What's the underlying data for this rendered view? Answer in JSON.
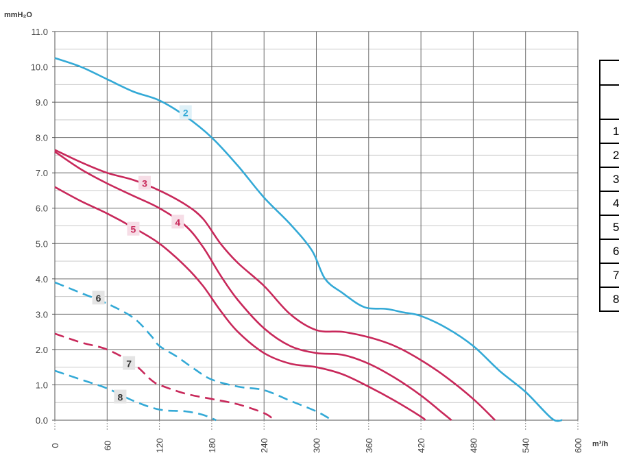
{
  "chart_data": {
    "type": "line",
    "title": "",
    "xlabel": "m³/h",
    "ylabel": "mmH₂O",
    "xlim": [
      0,
      600
    ],
    "ylim": [
      0,
      11
    ],
    "grid": true,
    "x_ticks": [
      0,
      60,
      120,
      180,
      240,
      300,
      360,
      420,
      480,
      540,
      600
    ],
    "y_ticks": [
      "0.0",
      "1.0",
      "2.0",
      "3.0",
      "4.0",
      "5.0",
      "6.0",
      "7.0",
      "8.0",
      "9.0",
      "10.0",
      "11.0"
    ],
    "series": [
      {
        "name": "2",
        "color": "#33a9d6",
        "dashed": false,
        "label_at": [
          150,
          8.7
        ],
        "points": [
          [
            0,
            10.25
          ],
          [
            30,
            10.0
          ],
          [
            60,
            9.65
          ],
          [
            90,
            9.3
          ],
          [
            120,
            9.05
          ],
          [
            150,
            8.6
          ],
          [
            180,
            8.0
          ],
          [
            210,
            7.2
          ],
          [
            240,
            6.3
          ],
          [
            270,
            5.55
          ],
          [
            295,
            4.8
          ],
          [
            310,
            4.0
          ],
          [
            330,
            3.6
          ],
          [
            355,
            3.2
          ],
          [
            380,
            3.15
          ],
          [
            400,
            3.05
          ],
          [
            420,
            2.95
          ],
          [
            450,
            2.6
          ],
          [
            480,
            2.1
          ],
          [
            510,
            1.4
          ],
          [
            540,
            0.8
          ],
          [
            570,
            0.05
          ],
          [
            582,
            0.0
          ]
        ]
      },
      {
        "name": "3",
        "color": "#c8285a",
        "dashed": false,
        "label_at": [
          103,
          6.7
        ],
        "points": [
          [
            0,
            7.65
          ],
          [
            30,
            7.3
          ],
          [
            60,
            7.0
          ],
          [
            90,
            6.8
          ],
          [
            120,
            6.5
          ],
          [
            150,
            6.1
          ],
          [
            170,
            5.7
          ],
          [
            190,
            5.0
          ],
          [
            210,
            4.45
          ],
          [
            240,
            3.8
          ],
          [
            270,
            3.0
          ],
          [
            300,
            2.55
          ],
          [
            330,
            2.5
          ],
          [
            360,
            2.35
          ],
          [
            390,
            2.1
          ],
          [
            420,
            1.7
          ],
          [
            450,
            1.2
          ],
          [
            480,
            0.6
          ],
          [
            505,
            0.0
          ]
        ]
      },
      {
        "name": "4",
        "color": "#c8285a",
        "dashed": false,
        "label_at": [
          141,
          5.6
        ],
        "points": [
          [
            0,
            7.6
          ],
          [
            30,
            7.1
          ],
          [
            60,
            6.7
          ],
          [
            90,
            6.35
          ],
          [
            120,
            6.0
          ],
          [
            150,
            5.5
          ],
          [
            170,
            4.9
          ],
          [
            190,
            4.1
          ],
          [
            210,
            3.4
          ],
          [
            240,
            2.6
          ],
          [
            270,
            2.1
          ],
          [
            300,
            1.9
          ],
          [
            330,
            1.85
          ],
          [
            360,
            1.6
          ],
          [
            390,
            1.2
          ],
          [
            420,
            0.7
          ],
          [
            445,
            0.2
          ],
          [
            455,
            0.0
          ]
        ]
      },
      {
        "name": "5",
        "color": "#c8285a",
        "dashed": false,
        "label_at": [
          90,
          5.4
        ],
        "points": [
          [
            0,
            6.6
          ],
          [
            30,
            6.2
          ],
          [
            60,
            5.85
          ],
          [
            90,
            5.45
          ],
          [
            120,
            5.0
          ],
          [
            150,
            4.35
          ],
          [
            170,
            3.8
          ],
          [
            190,
            3.1
          ],
          [
            210,
            2.5
          ],
          [
            240,
            1.9
          ],
          [
            270,
            1.6
          ],
          [
            300,
            1.5
          ],
          [
            330,
            1.3
          ],
          [
            360,
            0.95
          ],
          [
            390,
            0.55
          ],
          [
            420,
            0.1
          ],
          [
            425,
            0.0
          ]
        ]
      },
      {
        "name": "6",
        "color": "#33a9d6",
        "dashed": true,
        "label_at": [
          50,
          3.45
        ],
        "points": [
          [
            0,
            3.9
          ],
          [
            30,
            3.6
          ],
          [
            60,
            3.3
          ],
          [
            90,
            2.9
          ],
          [
            110,
            2.4
          ],
          [
            120,
            2.1
          ],
          [
            140,
            1.8
          ],
          [
            160,
            1.45
          ],
          [
            180,
            1.15
          ],
          [
            210,
            0.95
          ],
          [
            240,
            0.85
          ],
          [
            270,
            0.55
          ],
          [
            300,
            0.25
          ],
          [
            318,
            0.0
          ]
        ]
      },
      {
        "name": "7",
        "color": "#c8285a",
        "dashed": true,
        "label_at": [
          85,
          1.6
        ],
        "points": [
          [
            0,
            2.45
          ],
          [
            30,
            2.2
          ],
          [
            60,
            2.0
          ],
          [
            90,
            1.6
          ],
          [
            110,
            1.15
          ],
          [
            120,
            1.0
          ],
          [
            150,
            0.75
          ],
          [
            180,
            0.6
          ],
          [
            210,
            0.45
          ],
          [
            240,
            0.2
          ],
          [
            252,
            0.0
          ]
        ]
      },
      {
        "name": "8",
        "color": "#33a9d6",
        "dashed": true,
        "label_at": [
          75,
          0.65
        ],
        "points": [
          [
            0,
            1.4
          ],
          [
            30,
            1.15
          ],
          [
            60,
            0.9
          ],
          [
            90,
            0.55
          ],
          [
            120,
            0.3
          ],
          [
            150,
            0.25
          ],
          [
            170,
            0.15
          ],
          [
            185,
            0.0
          ]
        ]
      }
    ],
    "x_unit_label": "m³/h",
    "y_unit_label": "mmH₂O"
  },
  "table": {
    "rows": [
      "1",
      "2",
      "3",
      "4",
      "5",
      "6",
      "7",
      "8"
    ]
  }
}
